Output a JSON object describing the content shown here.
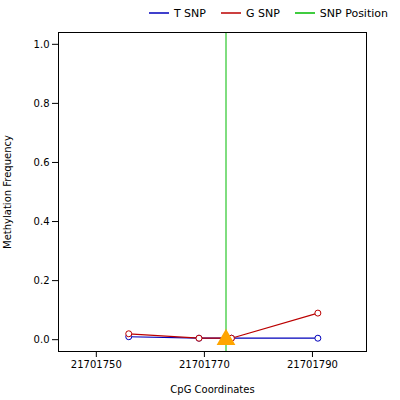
{
  "chart_data": {
    "type": "line",
    "xlabel": "CpG Coordinates",
    "ylabel": "Methylation Frequency",
    "x": [
      21701756,
      21701769,
      21701775,
      21701791
    ],
    "series": [
      {
        "name": "T SNP",
        "color": "#0000bb",
        "marker": "circle",
        "values": [
          0.01,
          0.005,
          0.005,
          0.005
        ]
      },
      {
        "name": "G SNP",
        "color": "#bb0000",
        "marker": "circle",
        "values": [
          0.02,
          0.005,
          0.005,
          0.09
        ]
      }
    ],
    "vlines": [
      {
        "name": "SNP Position",
        "x": 21701774,
        "color": "#00bb00"
      }
    ],
    "markers": [
      {
        "x": 21701774,
        "y": 0.0,
        "color": "#ffa500",
        "marker": "triangle"
      }
    ],
    "xlim": [
      21701743,
      21701800
    ],
    "ylim": [
      -0.04,
      1.04
    ],
    "xticks": [
      21701750,
      21701770,
      21701790
    ],
    "yticks": [
      {
        "value": 0.0,
        "label": "0.0"
      },
      0.2,
      0.4,
      0.6,
      0.8,
      {
        "value": 1.0,
        "label": "1.0"
      }
    ],
    "grid": false,
    "legend": "upper right"
  }
}
